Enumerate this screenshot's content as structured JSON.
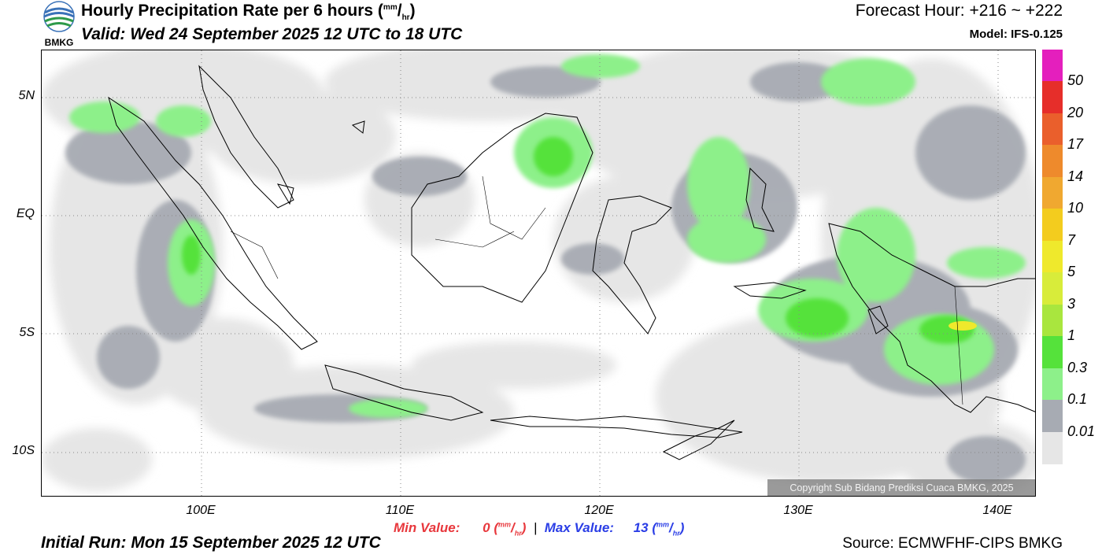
{
  "header": {
    "title": "Hourly Precipitation Rate per 6 hours",
    "title_unit_num": "mm",
    "title_unit_den": "hr",
    "valid": "Valid: Wed 24 September 2025 12 UTC to 18 UTC",
    "forecast_hour": "Forecast Hour: +216 ~ +222",
    "model": "Model: IFS-0.125",
    "logo_text": "BMKG"
  },
  "map": {
    "lat_labels": [
      "5N",
      "EQ",
      "5S",
      "10S"
    ],
    "lon_labels": [
      "100E",
      "110E",
      "120E",
      "130E",
      "140E"
    ],
    "copyright": "Copyright Sub Bidang Prediksi Cuaca BMKG, 2025"
  },
  "legend": {
    "labels": [
      "50",
      "20",
      "17",
      "14",
      "10",
      "7",
      "5",
      "3",
      "1",
      "0.3",
      "0.1",
      "0.01"
    ],
    "colors": [
      "#e41fbd",
      "#e62e2a",
      "#ea5f2c",
      "#ee8a2c",
      "#f0a830",
      "#f3cc1e",
      "#efe92c",
      "#d8ec3a",
      "#a9e63e",
      "#55e23b",
      "#8df08a",
      "#a7abb3",
      "#e6e6e6"
    ]
  },
  "footer": {
    "min_label": "Min Value:",
    "min_value": "0",
    "max_label": "Max Value:",
    "max_value": "13",
    "unit_num": "mm",
    "unit_den": "hr",
    "initial_run": "Initial Run: Mon 15 September 2025 12 UTC",
    "source": "Source: ECMWFHF-CIPS BMKG"
  }
}
